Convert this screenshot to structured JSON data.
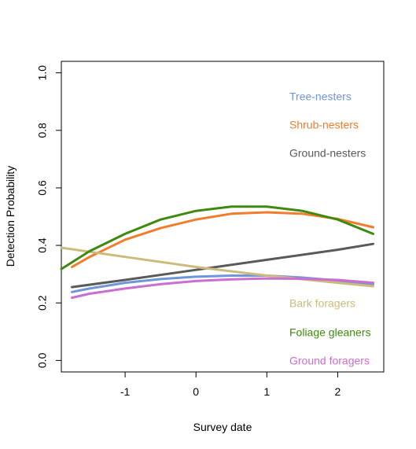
{
  "chart_data": {
    "type": "line",
    "title": "",
    "xlabel": "Survey date",
    "ylabel": "Detection Probability",
    "xlim": [
      -1.9,
      2.65
    ],
    "ylim": [
      -0.04,
      1.04
    ],
    "xticks": [
      -1,
      0,
      1,
      2
    ],
    "yticks": [
      0.0,
      0.2,
      0.4,
      0.6,
      0.8,
      1.0
    ],
    "xtick_labels": [
      "-1",
      "0",
      "1",
      "2"
    ],
    "ytick_labels": [
      "0.0",
      "0.2",
      "0.4",
      "0.6",
      "0.8",
      "1.0"
    ],
    "grid": false,
    "legend": "inside-right",
    "series": [
      {
        "name": "Tree-nesters",
        "color": "#6F95DA",
        "x": [
          -1.75,
          -1.5,
          -1.0,
          -0.5,
          0.0,
          0.5,
          1.0,
          1.5,
          2.0,
          2.5
        ],
        "y": [
          0.238,
          0.25,
          0.27,
          0.283,
          0.291,
          0.295,
          0.295,
          0.288,
          0.278,
          0.265
        ]
      },
      {
        "name": "Shrub-nesters",
        "color": "#F27C2C",
        "x": [
          -1.75,
          -1.5,
          -1.0,
          -0.5,
          0.0,
          0.5,
          1.0,
          1.5,
          2.0,
          2.5
        ],
        "y": [
          0.325,
          0.36,
          0.42,
          0.46,
          0.49,
          0.51,
          0.515,
          0.51,
          0.492,
          0.463
        ]
      },
      {
        "name": "Ground-nesters",
        "color": "#5A5A5A",
        "x": [
          -1.75,
          -1.0,
          0.0,
          1.0,
          2.0,
          2.5
        ],
        "y": [
          0.255,
          0.28,
          0.315,
          0.35,
          0.385,
          0.405
        ]
      },
      {
        "name": "Bark foragers",
        "color": "#CDBB7B",
        "x": [
          -1.9,
          -1.0,
          0.0,
          1.0,
          2.0,
          2.5
        ],
        "y": [
          0.392,
          0.36,
          0.325,
          0.295,
          0.27,
          0.258
        ]
      },
      {
        "name": "Foliage gleaners",
        "color": "#3E8A0E",
        "x": [
          -1.9,
          -1.5,
          -1.0,
          -0.5,
          0.0,
          0.5,
          1.0,
          1.5,
          2.0,
          2.5
        ],
        "y": [
          0.318,
          0.38,
          0.44,
          0.49,
          0.52,
          0.535,
          0.535,
          0.52,
          0.49,
          0.44
        ]
      },
      {
        "name": "Ground foragers",
        "color": "#CC6ED0",
        "x": [
          -1.75,
          -1.5,
          -1.0,
          -0.5,
          0.0,
          0.5,
          1.0,
          1.5,
          2.0,
          2.5
        ],
        "y": [
          0.218,
          0.232,
          0.25,
          0.265,
          0.276,
          0.282,
          0.285,
          0.284,
          0.28,
          0.27
        ]
      }
    ]
  }
}
